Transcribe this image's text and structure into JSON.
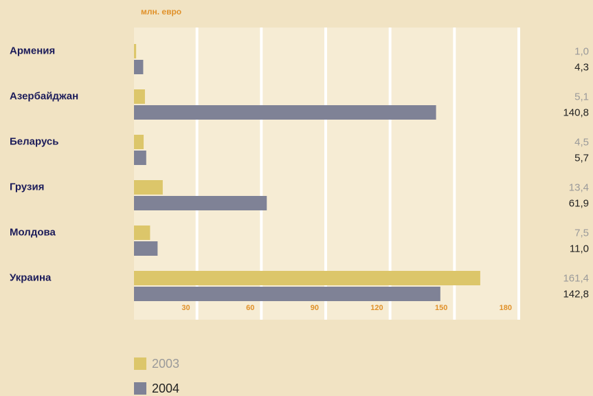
{
  "chart_data": {
    "type": "bar",
    "orientation": "horizontal",
    "axis_label": "млн. евро",
    "categories": [
      "Армения",
      "Азербайджан",
      "Беларусь",
      "Грузия",
      "Молдова",
      "Украина"
    ],
    "series": [
      {
        "name": "2003",
        "color": "#dcc66a",
        "values": [
          1.0,
          5.1,
          4.5,
          13.4,
          7.5,
          161.4
        ],
        "value_labels": [
          "1,0",
          "5,1",
          "4,5",
          "13,4",
          "7,5",
          "161,4"
        ]
      },
      {
        "name": "2004",
        "color": "#7f8296",
        "values": [
          4.3,
          140.8,
          5.7,
          61.9,
          11.0,
          142.8
        ],
        "value_labels": [
          "4,3",
          "140,8",
          "5,7",
          "61,9",
          "11,0",
          "142,8"
        ]
      }
    ],
    "xlim": [
      0,
      180
    ],
    "xticks": [
      30,
      60,
      90,
      120,
      150,
      180
    ],
    "grid": true
  }
}
